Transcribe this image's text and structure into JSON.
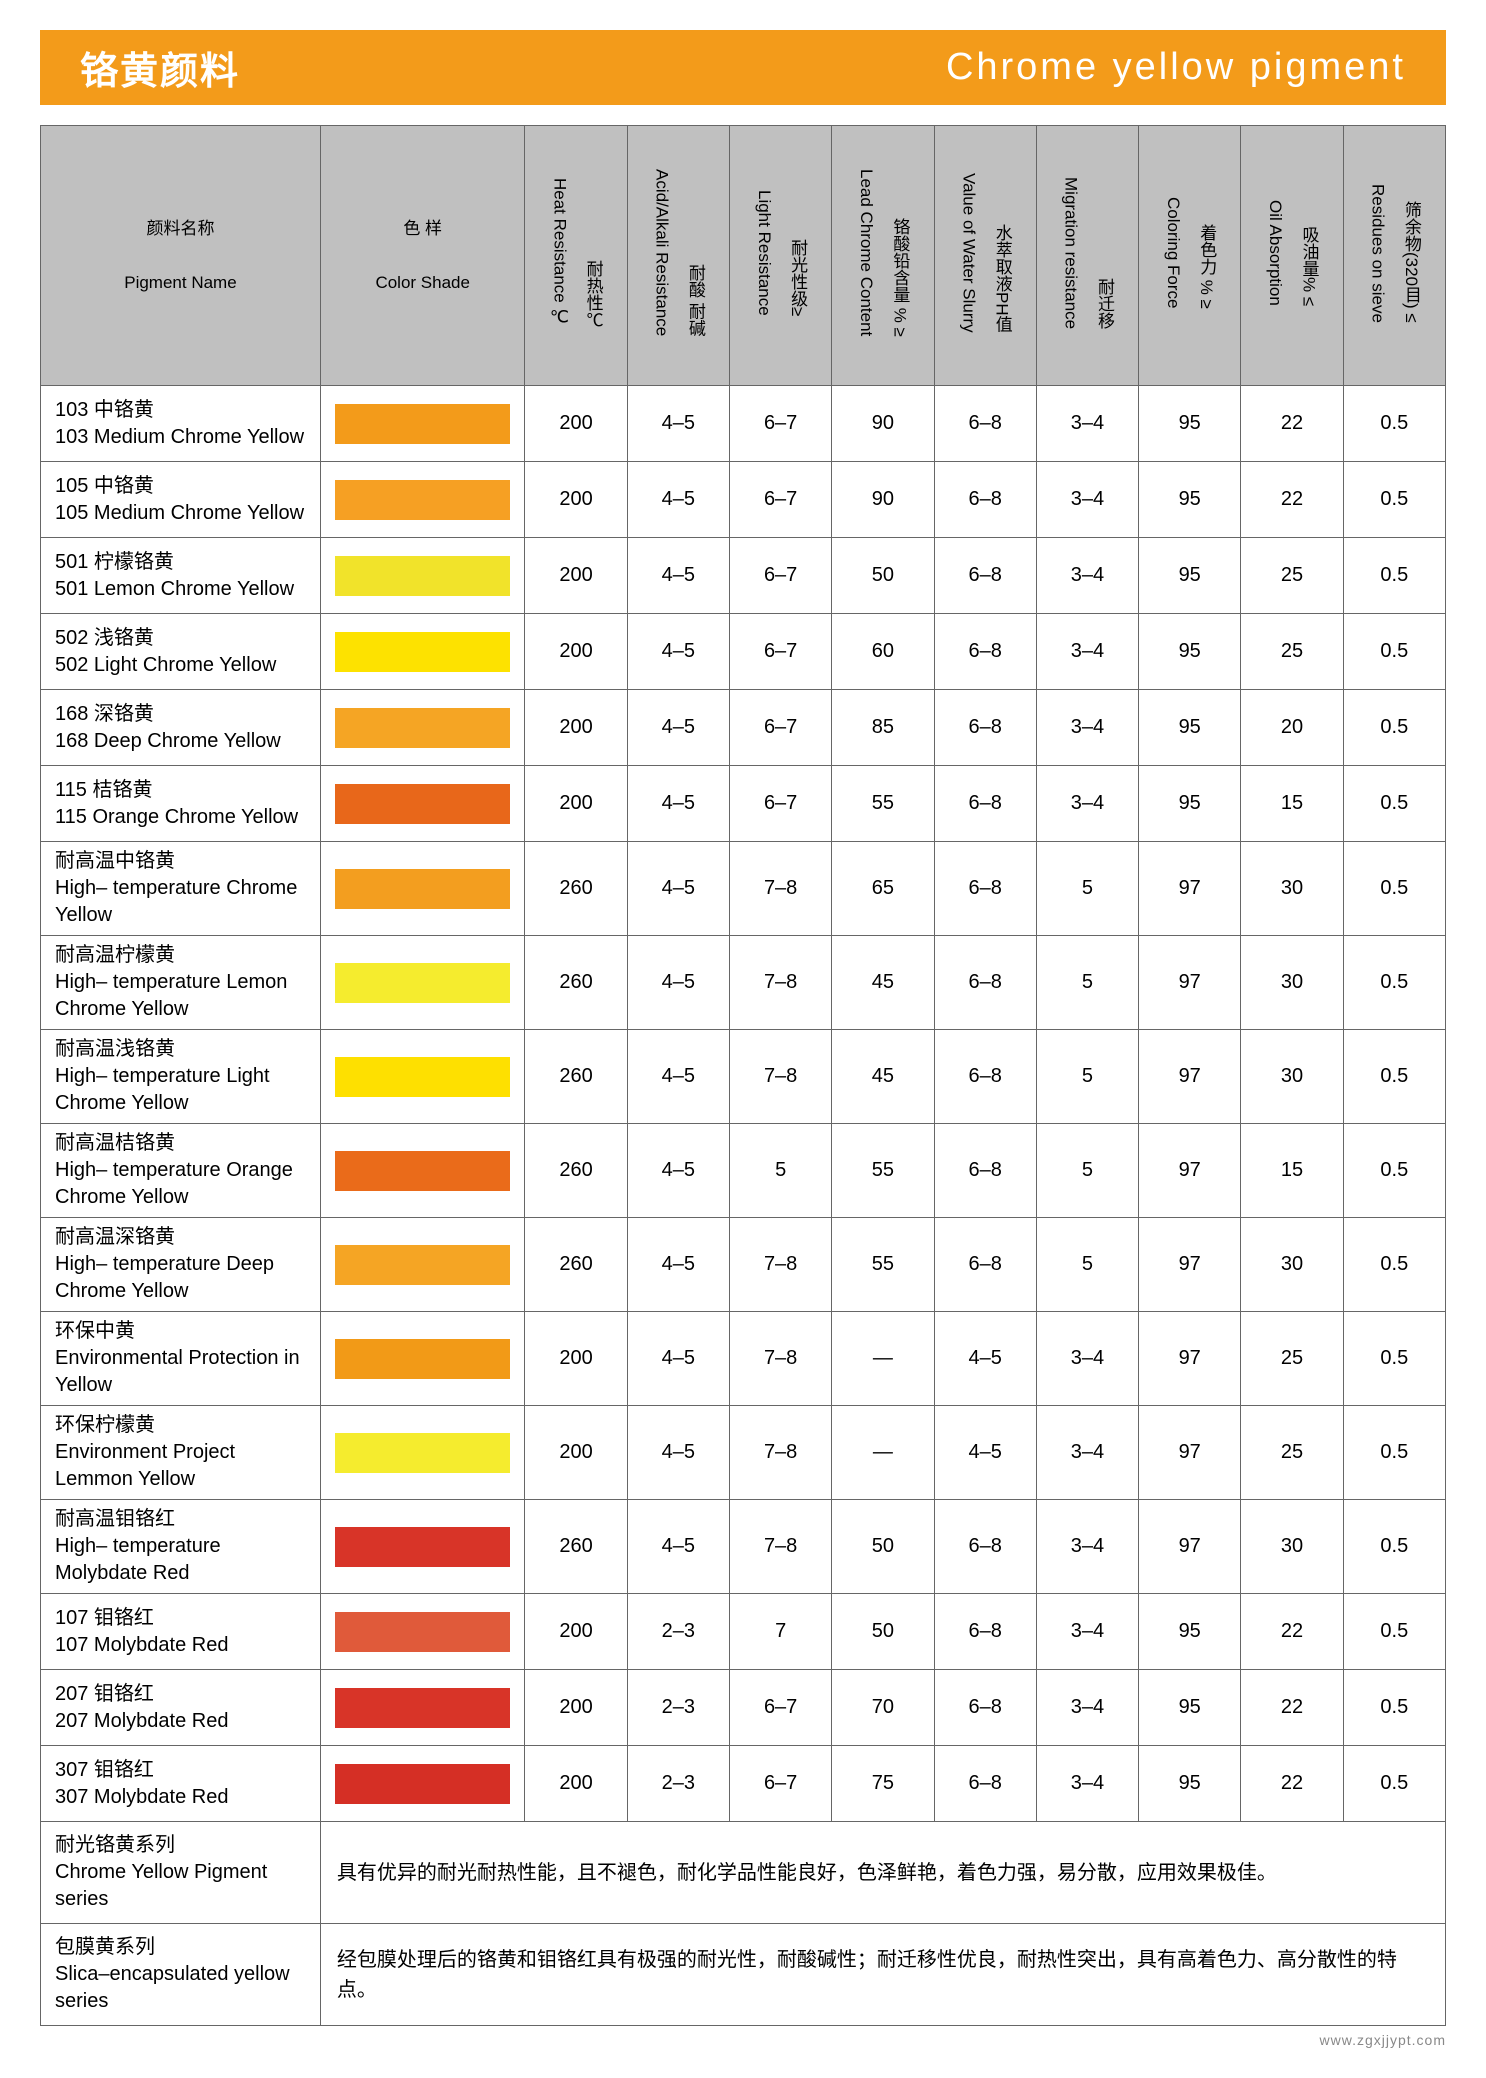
{
  "banner": {
    "title_cn": "铬黄颜料",
    "title_en": "Chrome yellow pigment"
  },
  "headers": {
    "name_cn": "颜料名称",
    "name_en": "Pigment  Name",
    "shade_cn": "色 样",
    "shade_en": "Color Shade",
    "cols": [
      {
        "cn": "耐热性℃",
        "en": "Heat Resistance ℃"
      },
      {
        "cn": "耐酸 耐碱",
        "en": "Acid/Alkali Resistance"
      },
      {
        "cn": "耐光性级≥",
        "en": "Light Resistance"
      },
      {
        "cn": "铬酸铅含量 % ≥",
        "en": "Lead Chrome Content"
      },
      {
        "cn": "水萃取液PH值",
        "en": "Value of Water Slurry"
      },
      {
        "cn": "耐迁移",
        "en": "Migration resistance"
      },
      {
        "cn": "着色力 % ≥",
        "en": "Coloring Force"
      },
      {
        "cn": "吸油量% ≤",
        "en": "Oil Absorption"
      },
      {
        "cn": "筛余物(320目) ≤",
        "en": "Residues on sieve"
      }
    ]
  },
  "rows": [
    {
      "cn": "103 中铬黄",
      "en": "103 Medium Chrome Yellow",
      "color": "#f39b1a",
      "v": [
        "200",
        "4–5",
        "6–7",
        "90",
        "6–8",
        "3–4",
        "95",
        "22",
        "0.5"
      ]
    },
    {
      "cn": "105 中铬黄",
      "en": "105  Medium Chrome Yellow",
      "color": "#f6a023",
      "v": [
        "200",
        "4–5",
        "6–7",
        "90",
        "6–8",
        "3–4",
        "95",
        "22",
        "0.5"
      ]
    },
    {
      "cn": "501 柠檬铬黄",
      "en": "501 Lemon Chrome Yellow",
      "color": "#f1e32a",
      "v": [
        "200",
        "4–5",
        "6–7",
        "50",
        "6–8",
        "3–4",
        "95",
        "25",
        "0.5"
      ]
    },
    {
      "cn": "502 浅铬黄",
      "en": "502 Light Chrome Yellow",
      "color": "#fde200",
      "v": [
        "200",
        "4–5",
        "6–7",
        "60",
        "6–8",
        "3–4",
        "95",
        "25",
        "0.5"
      ]
    },
    {
      "cn": "168 深铬黄",
      "en": "168 Deep Chrome Yellow",
      "color": "#f5a524",
      "v": [
        "200",
        "4–5",
        "6–7",
        "85",
        "6–8",
        "3–4",
        "95",
        "20",
        "0.5"
      ]
    },
    {
      "cn": "115 桔铬黄",
      "en": "115 Orange Chrome Yellow",
      "color": "#e8671a",
      "v": [
        "200",
        "4–5",
        "6–7",
        "55",
        "6–8",
        "3–4",
        "95",
        "15",
        "0.5"
      ]
    },
    {
      "cn": "耐高温中铬黄",
      "en": "High– temperature Chrome Yellow",
      "color": "#f39e1f",
      "v": [
        "260",
        "4–5",
        "7–8",
        "65",
        "6–8",
        "5",
        "97",
        "30",
        "0.5"
      ]
    },
    {
      "cn": "耐高温柠檬黄",
      "en": "High– temperature Lemon Chrome Yellow",
      "color": "#f5ec2e",
      "v": [
        "260",
        "4–5",
        "7–8",
        "45",
        "6–8",
        "5",
        "97",
        "30",
        "0.5"
      ]
    },
    {
      "cn": "耐高温浅铬黄",
      "en": "High– temperature Light Chrome Yellow",
      "color": "#fee000",
      "v": [
        "260",
        "4–5",
        "7–8",
        "45",
        "6–8",
        "5",
        "97",
        "30",
        "0.5"
      ]
    },
    {
      "cn": "耐高温桔铬黄",
      "en": "High– temperature Orange Chrome Yellow",
      "color": "#ea6b1a",
      "v": [
        "260",
        "4–5",
        "5",
        "55",
        "6–8",
        "5",
        "97",
        "15",
        "0.5"
      ]
    },
    {
      "cn": "耐高温深铬黄",
      "en": "High– temperature Deep Chrome Yellow",
      "color": "#f5a524",
      "v": [
        "260",
        "4–5",
        "7–8",
        "55",
        "6–8",
        "5",
        "97",
        "30",
        "0.5"
      ]
    },
    {
      "cn": "环保中黄",
      "en": "Environmental Protection in Yellow",
      "color": "#f29a17",
      "v": [
        "200",
        "4–5",
        "7–8",
        "—",
        "4–5",
        "3–4",
        "97",
        "25",
        "0.5"
      ]
    },
    {
      "cn": "环保柠檬黄",
      "en": "Environment Project Lemmon Yellow",
      "color": "#f5ec2e",
      "v": [
        "200",
        "4–5",
        "7–8",
        "—",
        "4–5",
        "3–4",
        "97",
        "25",
        "0.5"
      ]
    },
    {
      "cn": "耐高温钼铬红",
      "en": "High– temperature Molybdate Red",
      "color": "#d83428",
      "v": [
        "260",
        "4–5",
        "7–8",
        "50",
        "6–8",
        "3–4",
        "97",
        "30",
        "0.5"
      ]
    },
    {
      "cn": "107 钼铬红",
      "en": "107  Molybdate Red",
      "color": "#e05a3a",
      "v": [
        "200",
        "2–3",
        "7",
        "50",
        "6–8",
        "3–4",
        "95",
        "22",
        "0.5"
      ]
    },
    {
      "cn": "207 钼铬红",
      "en": "207  Molybdate Red",
      "color": "#d83428",
      "v": [
        "200",
        "2–3",
        "6–7",
        "70",
        "6–8",
        "3–4",
        "95",
        "22",
        "0.5"
      ]
    },
    {
      "cn": "307 钼铬红",
      "en": "307  Molybdate Red",
      "color": "#d52f25",
      "v": [
        "200",
        "2–3",
        "6–7",
        "75",
        "6–8",
        "3–4",
        "95",
        "22",
        "0.5"
      ]
    }
  ],
  "series": [
    {
      "name_cn": "耐光铬黄系列",
      "name_en": "Chrome Yellow Pigment series",
      "desc": "具有优异的耐光耐热性能，且不褪色，耐化学品性能良好，色泽鲜艳，着色力强，易分散，应用效果极佳。"
    },
    {
      "name_cn": "包膜黄系列",
      "name_en": "Slica–encapsulated yellow series",
      "desc": "经包膜处理后的铬黄和钼铬红具有极强的耐光性，耐酸碱性；耐迁移性优良，耐热性突出，具有高着色力、高分散性的特点。"
    }
  ],
  "footer_url": "www.zgxjjypt.com"
}
